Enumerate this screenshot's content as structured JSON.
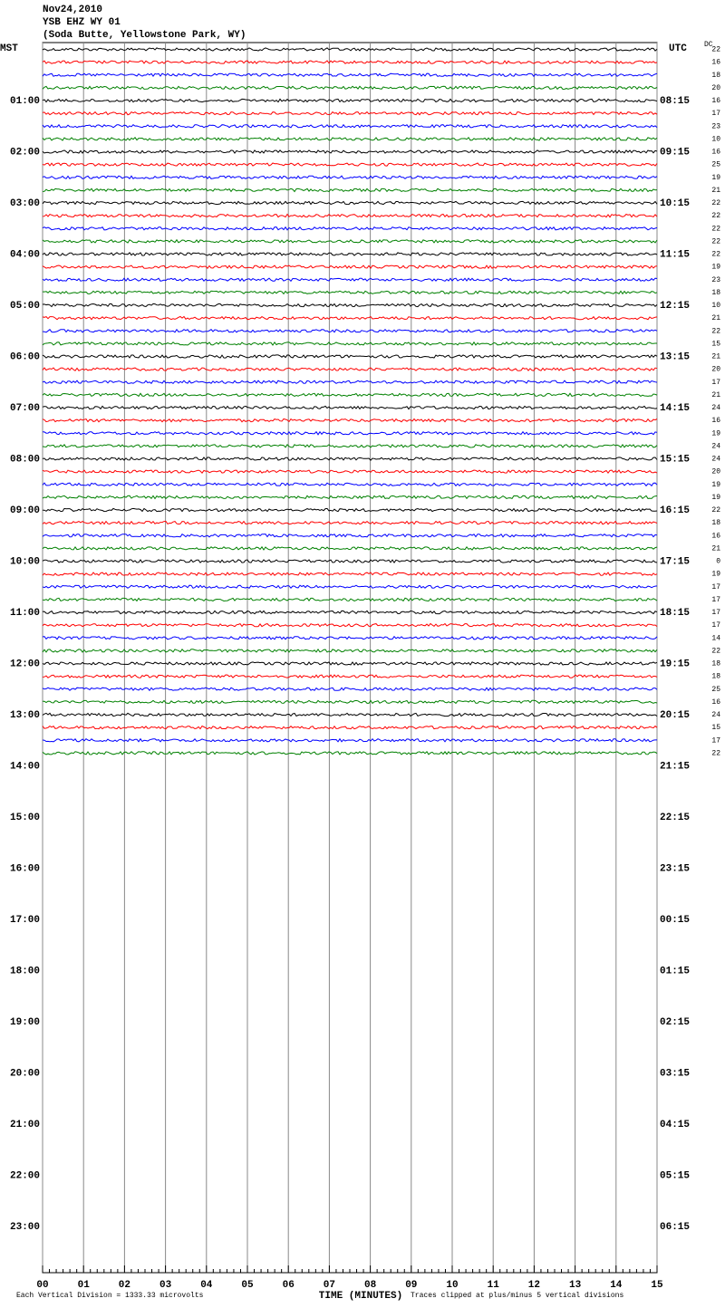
{
  "chart_data": {
    "type": "helicorder",
    "title_lines": [
      "Nov24,2010",
      "YSB EHZ WY 01",
      "(Soda Butte, Yellowstone Park, WY)"
    ],
    "left_axis_title": "MST",
    "right_axis_title": "UTC",
    "dc_title": "DC",
    "left_labels": [
      null,
      "01:00",
      "02:00",
      "03:00",
      "04:00",
      "05:00",
      "06:00",
      "07:00",
      "08:00",
      "09:00",
      "10:00",
      "11:00",
      "12:00",
      "13:00",
      "14:00",
      "15:00",
      "16:00",
      "17:00",
      "18:00",
      "19:00",
      "20:00",
      "21:00",
      "22:00",
      "23:00"
    ],
    "right_labels": [
      null,
      "08:15",
      "09:15",
      "10:15",
      "11:15",
      "12:15",
      "13:15",
      "14:15",
      "15:15",
      "16:15",
      "17:15",
      "18:15",
      "19:15",
      "20:15",
      "21:15",
      "22:15",
      "23:15",
      "00:15",
      "01:15",
      "02:15",
      "03:15",
      "04:15",
      "05:15",
      "06:15"
    ],
    "dc_offsets": [
      22,
      16,
      18,
      20,
      16,
      17,
      23,
      10,
      16,
      25,
      19,
      21,
      22,
      22,
      22,
      22,
      22,
      19,
      23,
      18,
      10,
      21,
      22,
      15,
      21,
      20,
      17,
      21,
      24,
      16,
      19,
      24,
      24,
      20,
      19,
      19,
      22,
      18,
      16,
      21,
      0,
      19,
      17,
      17,
      17,
      17,
      14,
      22,
      18,
      18,
      25,
      16,
      24,
      15,
      17,
      22
    ],
    "trace_colors": [
      "#000000",
      "#ff0000",
      "#0000ff",
      "#008000"
    ],
    "xlabel": "TIME (MINUTES)",
    "xlim": [
      0,
      15
    ],
    "xticks": [
      {
        "value": 0,
        "label": "00"
      },
      {
        "value": 1,
        "label": "01"
      },
      {
        "value": 2,
        "label": "02"
      },
      {
        "value": 3,
        "label": "03"
      },
      {
        "value": 4,
        "label": "04"
      },
      {
        "value": 5,
        "label": "05"
      },
      {
        "value": 6,
        "label": "06"
      },
      {
        "value": 7,
        "label": "07"
      },
      {
        "value": 8,
        "label": "08"
      },
      {
        "value": 9,
        "label": "09"
      },
      {
        "value": 10,
        "label": "10"
      },
      {
        "value": 11,
        "label": "11"
      },
      {
        "value": 12,
        "label": "12"
      },
      {
        "value": 13,
        "label": "13"
      },
      {
        "value": 14,
        "label": "14"
      },
      {
        "value": 15,
        "label": "15"
      }
    ],
    "footer_left": "Each Vertical Division = 1333.33 microvolts",
    "footer_right": "Traces clipped at plus/minus 5 vertical divisions"
  }
}
